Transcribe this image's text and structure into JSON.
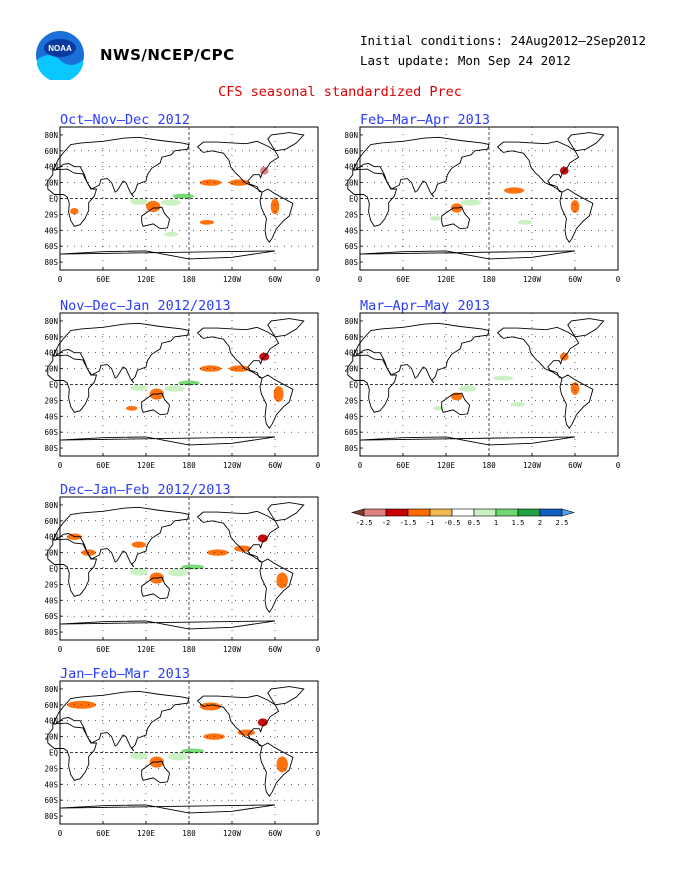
{
  "header": {
    "agency": "NWS/NCEP/CPC",
    "initial_conditions": "Initial conditions: 24Aug2012–2Sep2012",
    "last_update": "Last update: Mon Sep 24 2012",
    "title": "CFS seasonal standardized Prec",
    "logo": "noaa-logo"
  },
  "axes": {
    "lat_labels": [
      "80N",
      "60N",
      "40N",
      "20N",
      "EQ",
      "20S",
      "40S",
      "60S",
      "80S"
    ],
    "lon_labels": [
      "0",
      "60E",
      "120E",
      "180",
      "120W",
      "60W",
      "0"
    ]
  },
  "panels": [
    {
      "id": "ond",
      "title": "Oct–Nov–Dec 2012"
    },
    {
      "id": "ndj",
      "title": "Nov–Dec–Jan 2012/2013"
    },
    {
      "id": "djf",
      "title": "Dec–Jan–Feb 2012/2013"
    },
    {
      "id": "jfm",
      "title": "Jan–Feb–Mar 2013"
    },
    {
      "id": "fma",
      "title": "Feb–Mar–Apr 2013"
    },
    {
      "id": "mam",
      "title": "Mar–Apr–May 2013"
    }
  ],
  "legend": {
    "labels": [
      "-2.5",
      "-2",
      "-1.5",
      "-1",
      "-0.5",
      "0.5",
      "1",
      "1.5",
      "2",
      "2.5"
    ],
    "colors": [
      "#7b3f2a",
      "#e08080",
      "#c80000",
      "#ff6a00",
      "#f0b850",
      "#ffffff",
      "#c8f0c0",
      "#70d870",
      "#20a040",
      "#1060c0",
      "#50a0f0"
    ]
  }
}
